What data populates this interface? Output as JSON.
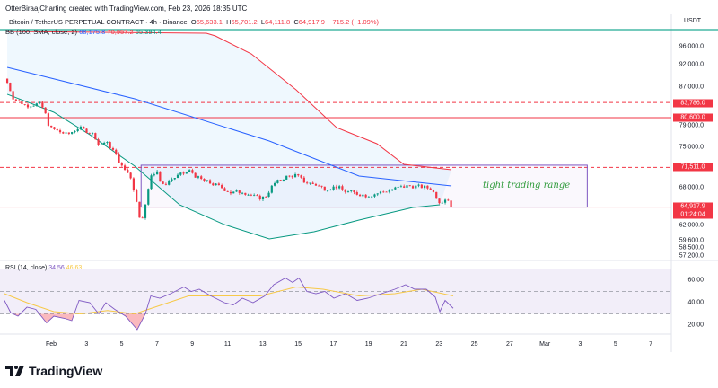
{
  "credit": "OtterBiraajCharting created with TradingView.com, Feb 23, 2026 18:35 UTC",
  "legend": {
    "symbol": "Bitcoin / TetherUS PERPETUAL CONTRACT · 4h · Binance",
    "o_label": "O",
    "o": "65,633.1",
    "h_label": "H",
    "h": "65,701.2",
    "l_label": "L",
    "l": "64,111.8",
    "c_label": "C",
    "c": "64,917.9",
    "change": "−715.2 (−1.09%)"
  },
  "bb_legend": {
    "label": "BB (100, SMA, close, 2)",
    "basis": "68,175.8",
    "upper": "70,957.2",
    "lower": "65,394.4"
  },
  "rsi_legend": {
    "label": "RSI (14, close)",
    "rsi": "34.56",
    "ma": "46.63"
  },
  "currency": "USDT",
  "price_axis": [
    "96,000.0",
    "92,000.0",
    "87,000.0",
    "79,000.0",
    "75,000.0",
    "68,000.0",
    "62,000.0",
    "59,600.0",
    "58,500.0",
    "57,200.0"
  ],
  "badges": {
    "l1": "83,786.0",
    "l2": "80,600.0",
    "l3": "71,511.0",
    "last": "64,917.9",
    "countdown": "01:24:04"
  },
  "rsi_axis": [
    "60.00",
    "40.00",
    "20.00"
  ],
  "x_axis": [
    "Feb",
    "3",
    "5",
    "7",
    "9",
    "11",
    "13",
    "15",
    "17",
    "19",
    "21",
    "23",
    "25",
    "27",
    "Mar",
    "3",
    "5",
    "7"
  ],
  "annotation": "tight trading range",
  "logo": "TradingView",
  "colors": {
    "up": "#089981",
    "down": "#f23645",
    "basis": "#2962ff",
    "upper": "#f23645",
    "lower": "#089981",
    "rsi": "#7e57c2",
    "rsi_ma": "#f7c948"
  },
  "chart_data": {
    "type": "candlestick",
    "title": "Bitcoin / TetherUS PERPETUAL CONTRACT · 4h · Binance",
    "x_unit": "day of February 2026",
    "closes": [
      [
        -1.49,
        88000
      ],
      [
        -1.14,
        84550
      ],
      [
        -0.37,
        83050
      ],
      [
        0.39,
        83600
      ],
      [
        0.64,
        81730
      ],
      [
        0.9,
        78730
      ],
      [
        1.25,
        78220
      ],
      [
        1.92,
        77380
      ],
      [
        2.58,
        78730
      ],
      [
        3.44,
        77380
      ],
      [
        3.7,
        75340
      ],
      [
        4.1,
        76020
      ],
      [
        4.61,
        74070
      ],
      [
        4.97,
        71730
      ],
      [
        5.48,
        70180
      ],
      [
        5.74,
        67140
      ],
      [
        5.99,
        63570
      ],
      [
        6.14,
        63140
      ],
      [
        6.4,
        65710
      ],
      [
        6.65,
        70180
      ],
      [
        7.01,
        70960
      ],
      [
        7.26,
        68160
      ],
      [
        7.77,
        69400
      ],
      [
        8.28,
        70180
      ],
      [
        8.89,
        70960
      ],
      [
        9.29,
        69710
      ],
      [
        9.91,
        68930
      ],
      [
        10.57,
        68160
      ],
      [
        11.23,
        67140
      ],
      [
        11.84,
        67430
      ],
      [
        12.6,
        66430
      ],
      [
        13.11,
        66430
      ],
      [
        13.62,
        68620
      ],
      [
        14.28,
        69870
      ],
      [
        14.89,
        70180
      ],
      [
        15.4,
        68930
      ],
      [
        15.91,
        68620
      ],
      [
        16.52,
        67860
      ],
      [
        17.18,
        68160
      ],
      [
        17.69,
        67430
      ],
      [
        18.2,
        67140
      ],
      [
        18.96,
        66710
      ],
      [
        19.73,
        67290
      ],
      [
        20.49,
        67860
      ],
      [
        21.25,
        68310
      ],
      [
        22.02,
        68160
      ],
      [
        22.53,
        67860
      ],
      [
        23.04,
        65710
      ],
      [
        23.44,
        66430
      ],
      [
        23.8,
        64917.9
      ]
    ],
    "bollinger": {
      "basis": [
        [
          -1.49,
          91400
        ],
        [
          5.74,
          84550
        ],
        [
          13.37,
          76190
        ],
        [
          18.46,
          70020
        ],
        [
          23.7,
          68310
        ]
      ],
      "upper": [
        [
          -1.49,
          99400
        ],
        [
          9.8,
          99000
        ],
        [
          10.31,
          98400
        ],
        [
          12.35,
          94400
        ],
        [
          14.89,
          86430
        ],
        [
          17.18,
          78735
        ],
        [
          19.47,
          75680
        ],
        [
          21.0,
          72040
        ],
        [
          23.7,
          71110
        ]
      ],
      "lower": [
        [
          -1.49,
          85500
        ],
        [
          1.15,
          81730
        ],
        [
          3.19,
          77380
        ],
        [
          5.74,
          71730
        ],
        [
          8.28,
          65290
        ],
        [
          10.82,
          62140
        ],
        [
          13.37,
          59880
        ],
        [
          15.91,
          61010
        ],
        [
          18.46,
          62860
        ],
        [
          21.51,
          64860
        ],
        [
          23.04,
          65290
        ]
      ]
    },
    "horizontal_levels": [
      {
        "price": 83786,
        "style": "dashed"
      },
      {
        "price": 80600,
        "style": "solid"
      },
      {
        "price": 71511,
        "style": "dashed"
      },
      {
        "price": 64917.9,
        "style": "last"
      }
    ],
    "range_box": {
      "from_day": 6.1,
      "to_day": 31.4,
      "low": 64917.9,
      "high": 71900
    },
    "rsi": [
      [
        -1.65,
        42
      ],
      [
        -1.29,
        31
      ],
      [
        -0.88,
        28
      ],
      [
        -0.37,
        36
      ],
      [
        0.13,
        34
      ],
      [
        0.74,
        22
      ],
      [
        1.15,
        28
      ],
      [
        1.76,
        26
      ],
      [
        2.17,
        24
      ],
      [
        2.58,
        42
      ],
      [
        3.19,
        40
      ],
      [
        3.7,
        30
      ],
      [
        4.1,
        40
      ],
      [
        4.61,
        34
      ],
      [
        5.22,
        28
      ],
      [
        5.88,
        16
      ],
      [
        6.34,
        30
      ],
      [
        6.65,
        46
      ],
      [
        7.16,
        44
      ],
      [
        7.77,
        48
      ],
      [
        8.53,
        54
      ],
      [
        8.94,
        50
      ],
      [
        9.4,
        52
      ],
      [
        10.06,
        46
      ],
      [
        10.82,
        40
      ],
      [
        11.33,
        38
      ],
      [
        11.84,
        44
      ],
      [
        12.45,
        40
      ],
      [
        13.11,
        46
      ],
      [
        13.62,
        56
      ],
      [
        14.28,
        62
      ],
      [
        14.69,
        58
      ],
      [
        15.05,
        62
      ],
      [
        15.5,
        50
      ],
      [
        16.01,
        48
      ],
      [
        16.52,
        50
      ],
      [
        17.03,
        44
      ],
      [
        17.69,
        48
      ],
      [
        18.35,
        42
      ],
      [
        18.96,
        44
      ],
      [
        19.73,
        48
      ],
      [
        20.49,
        52
      ],
      [
        21.1,
        56
      ],
      [
        21.61,
        52
      ],
      [
        22.27,
        52
      ],
      [
        22.78,
        45
      ],
      [
        23.04,
        32
      ],
      [
        23.34,
        42
      ],
      [
        23.8,
        35
      ]
    ],
    "rsi_ma": [
      [
        -1.65,
        48
      ],
      [
        -0.37,
        40
      ],
      [
        1.15,
        32
      ],
      [
        2.68,
        30
      ],
      [
        4.2,
        33
      ],
      [
        5.74,
        30
      ],
      [
        7.26,
        38
      ],
      [
        8.79,
        46
      ],
      [
        10.82,
        46
      ],
      [
        12.86,
        46
      ],
      [
        14.89,
        54
      ],
      [
        16.42,
        52
      ],
      [
        18.46,
        46
      ],
      [
        20.49,
        48
      ],
      [
        22.02,
        52
      ],
      [
        23.8,
        46
      ]
    ],
    "rsi_levels": [
      70,
      50,
      30
    ],
    "price_range": [
      57200,
      99500
    ]
  }
}
